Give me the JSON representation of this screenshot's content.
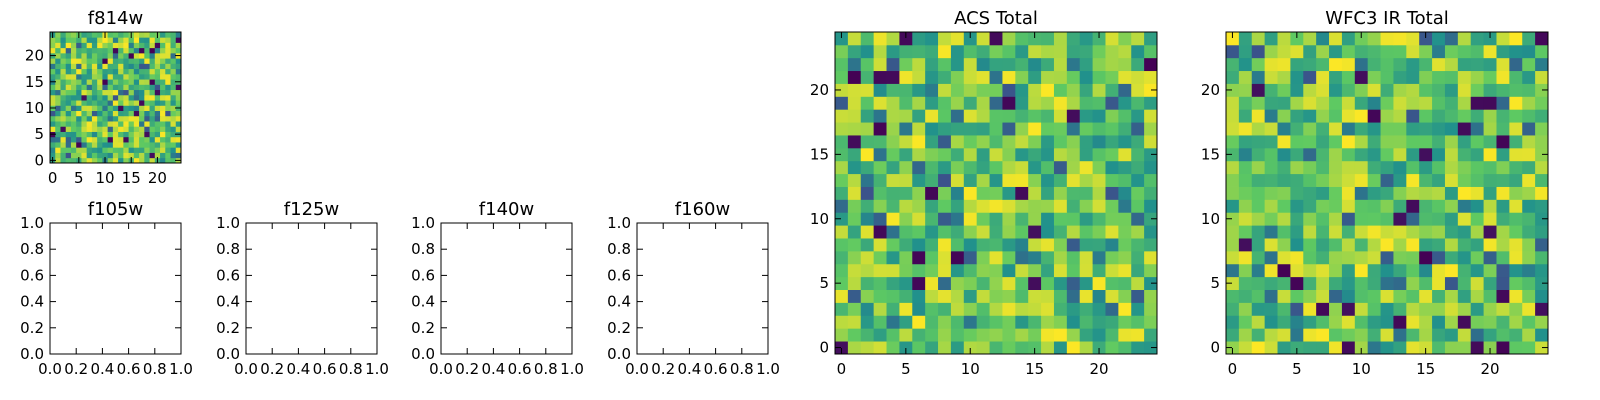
{
  "chart_data": [
    {
      "type": "heatmap",
      "title": "f814w",
      "grid_size": 25,
      "xlim": [
        -0.5,
        24.5
      ],
      "ylim": [
        -0.5,
        24.5
      ],
      "xticks": [
        0,
        5,
        10,
        15,
        20
      ],
      "yticks": [
        0,
        5,
        10,
        15,
        20
      ],
      "colormap": "viridis",
      "seed": 814
    },
    {
      "type": "empty",
      "title": "f105w",
      "xlim": [
        0,
        1
      ],
      "ylim": [
        0,
        1
      ],
      "xticks": [
        "0.0",
        "0.2",
        "0.4",
        "0.6",
        "0.8",
        "1.0"
      ],
      "yticks": [
        "0.0",
        "0.2",
        "0.4",
        "0.6",
        "0.8",
        "1.0"
      ]
    },
    {
      "type": "empty",
      "title": "f125w",
      "xlim": [
        0,
        1
      ],
      "ylim": [
        0,
        1
      ],
      "xticks": [
        "0.0",
        "0.2",
        "0.4",
        "0.6",
        "0.8",
        "1.0"
      ],
      "yticks": [
        "0.0",
        "0.2",
        "0.4",
        "0.6",
        "0.8",
        "1.0"
      ]
    },
    {
      "type": "empty",
      "title": "f140w",
      "xlim": [
        0,
        1
      ],
      "ylim": [
        0,
        1
      ],
      "xticks": [
        "0.0",
        "0.2",
        "0.4",
        "0.6",
        "0.8",
        "1.0"
      ],
      "yticks": [
        "0.0",
        "0.2",
        "0.4",
        "0.6",
        "0.8",
        "1.0"
      ]
    },
    {
      "type": "empty",
      "title": "f160w",
      "xlim": [
        0,
        1
      ],
      "ylim": [
        0,
        1
      ],
      "xticks": [
        "0.0",
        "0.2",
        "0.4",
        "0.6",
        "0.8",
        "1.0"
      ],
      "yticks": [
        "0.0",
        "0.2",
        "0.4",
        "0.6",
        "0.8",
        "1.0"
      ]
    },
    {
      "type": "heatmap",
      "title": "ACS Total",
      "grid_size": 25,
      "xlim": [
        -0.5,
        24.5
      ],
      "ylim": [
        -0.5,
        24.5
      ],
      "xticks": [
        0,
        5,
        10,
        15,
        20
      ],
      "yticks": [
        0,
        5,
        10,
        15,
        20
      ],
      "colormap": "viridis",
      "seed": 2001
    },
    {
      "type": "heatmap",
      "title": "WFC3 IR Total",
      "grid_size": 25,
      "xlim": [
        -0.5,
        24.5
      ],
      "ylim": [
        -0.5,
        24.5
      ],
      "xticks": [
        0,
        5,
        10,
        15,
        20
      ],
      "yticks": [
        0,
        5,
        10,
        15,
        20
      ],
      "colormap": "viridis",
      "seed": 3003
    }
  ]
}
